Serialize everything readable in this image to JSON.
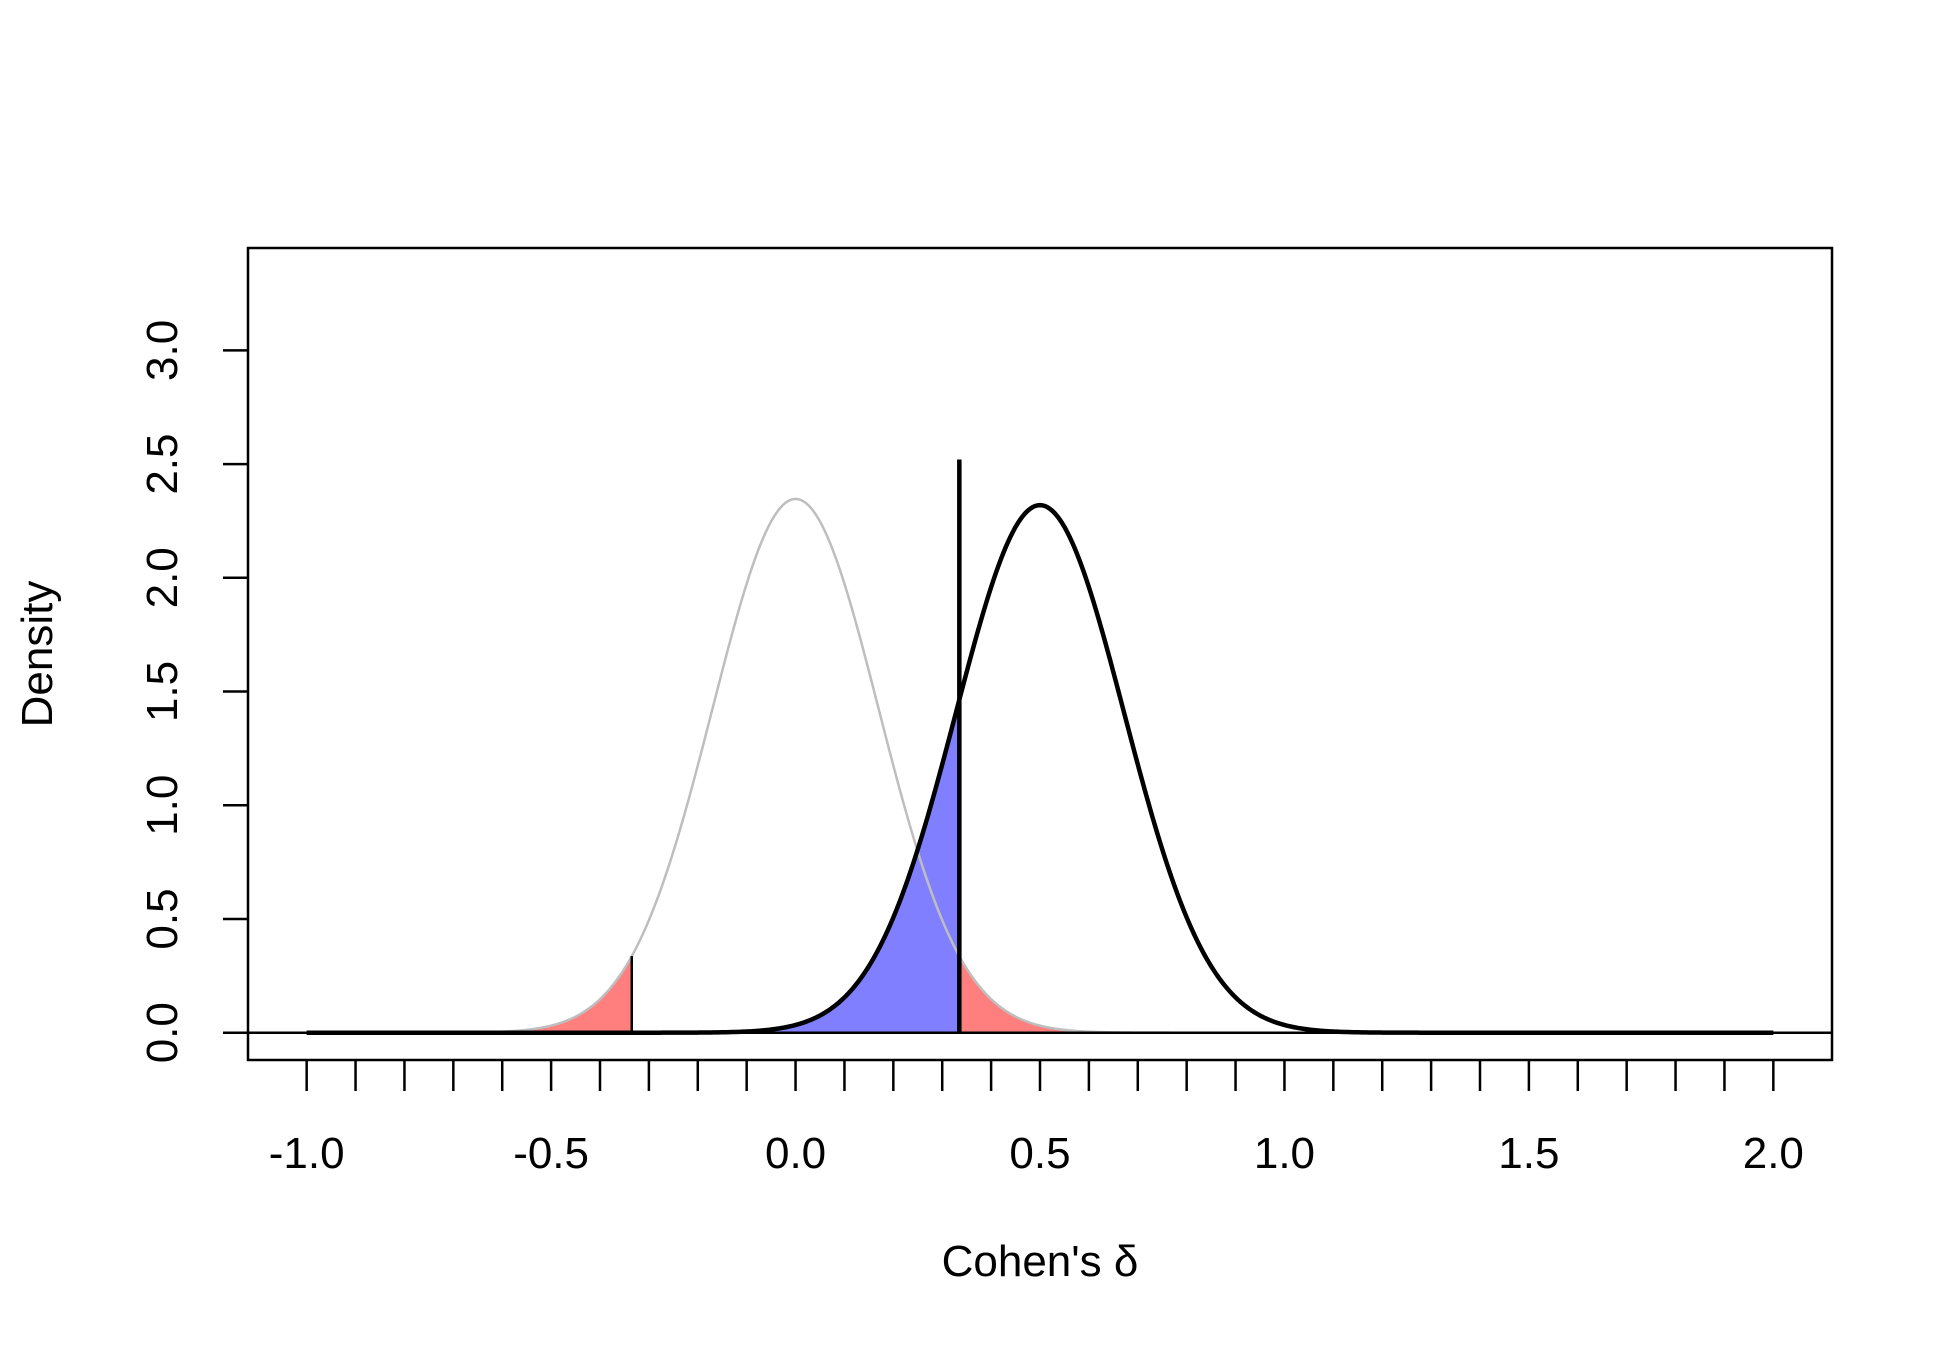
{
  "chart_data": {
    "type": "area",
    "title": "",
    "xlabel": "Cohen's δ",
    "ylabel": "Density",
    "xlim": [
      -1.12,
      2.12
    ],
    "ylim": [
      -0.12,
      3.45
    ],
    "x_ticks_labeled": [
      "-1.0",
      "-0.5",
      "0.0",
      "0.5",
      "1.0",
      "1.5",
      "2.0"
    ],
    "x_ticks_labeled_values": [
      -1.0,
      -0.5,
      0.0,
      0.5,
      1.0,
      1.5,
      2.0
    ],
    "x_minor_tick_step": 0.1,
    "y_ticks": [
      "0.0",
      "0.5",
      "1.0",
      "1.5",
      "2.0",
      "2.5",
      "3.0"
    ],
    "y_ticks_values": [
      0.0,
      0.5,
      1.0,
      1.5,
      2.0,
      2.5,
      3.0
    ],
    "grid": false,
    "series": [
      {
        "role": "null-distribution",
        "mean": 0.0,
        "sd": 0.17,
        "x_range": [
          -1.0,
          2.0
        ],
        "color": "#bebebe"
      },
      {
        "role": "alternative-distribution",
        "mean": 0.5,
        "sd": 0.172,
        "x_range": [
          -1.0,
          2.0
        ],
        "color": "#000000"
      }
    ],
    "critical_value": 0.335,
    "critical_line_top": 2.52,
    "shaded_regions": [
      {
        "role": "alpha-lower-tail",
        "from": -1.0,
        "to": -0.335,
        "under": "null-distribution",
        "color": "#ff7f7f"
      },
      {
        "role": "alpha-upper-tail",
        "from": 0.335,
        "to": 2.0,
        "under": "null-distribution",
        "color": "#ff7f7f"
      },
      {
        "role": "beta-region",
        "from": -1.0,
        "to": 0.335,
        "under": "alternative-distribution",
        "color": "#7f7fff"
      }
    ]
  }
}
